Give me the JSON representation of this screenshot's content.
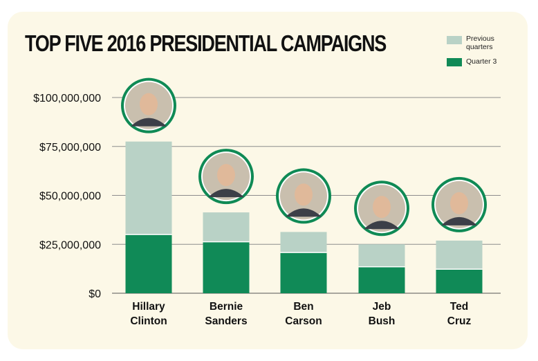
{
  "title": "TOP FIVE 2016 PRESIDENTIAL CAMPAIGNS",
  "legend": {
    "previous_label": "Previous quarters",
    "q3_label": "Quarter 3"
  },
  "colors": {
    "previous": "#b9d2c6",
    "q3": "#108a57",
    "ring": "#0f8a55",
    "grid": "#8c8c8c",
    "background": "#fcf8e7"
  },
  "chart_data": {
    "type": "bar",
    "stacked": true,
    "categories": [
      [
        "Hillary",
        "Clinton"
      ],
      [
        "Bernie",
        "Sanders"
      ],
      [
        "Ben",
        "Carson"
      ],
      [
        "Jeb",
        "Bush"
      ],
      [
        "Ted",
        "Cruz"
      ]
    ],
    "series": [
      {
        "name": "Quarter 3",
        "values": [
          30000000,
          26300000,
          20800000,
          13500000,
          12300000
        ]
      },
      {
        "name": "Previous quarters",
        "values": [
          47500000,
          15000000,
          10500000,
          11500000,
          14600000
        ]
      }
    ],
    "yticks": [
      0,
      25000000,
      50000000,
      75000000,
      100000000
    ],
    "ytick_labels": [
      "$0",
      "$25,000,000",
      "$50,000,000",
      "$75,000,000",
      "$100,000,000"
    ],
    "ylim": [
      0,
      100000000
    ],
    "grid": true,
    "legend_position": "top-right",
    "markers": [
      "candidate-photo",
      "candidate-photo",
      "candidate-photo",
      "candidate-photo",
      "candidate-photo"
    ]
  }
}
